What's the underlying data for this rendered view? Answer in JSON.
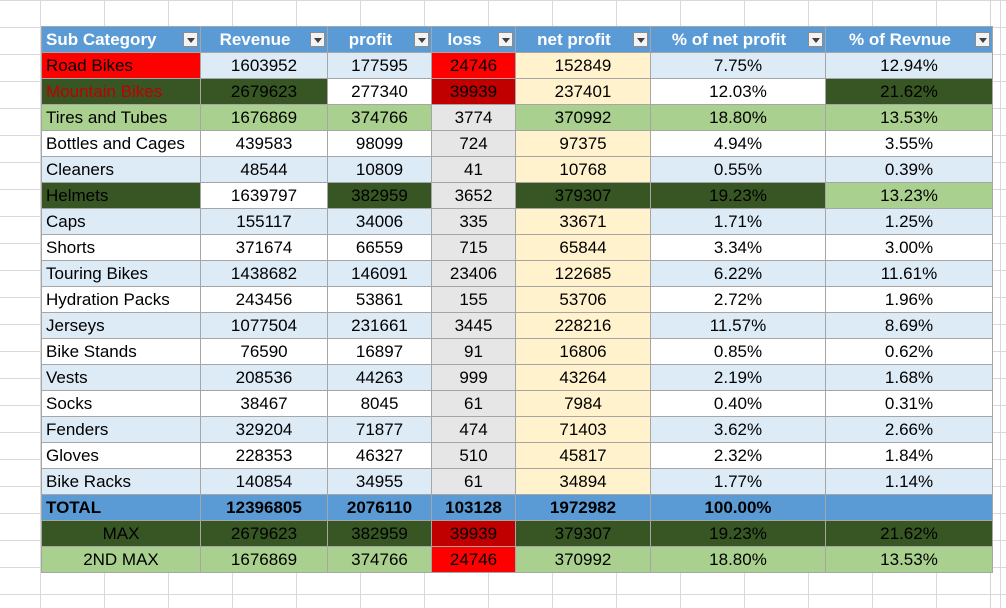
{
  "chart_data": {
    "type": "table",
    "headers": [
      "Sub Category",
      "Revenue",
      "profit",
      "loss",
      "net profit",
      "% of net profit",
      "% of Revnue"
    ],
    "rows": [
      [
        "Road Bikes",
        "1603952",
        "177595",
        "24746",
        "152849",
        "7.75%",
        "12.94%"
      ],
      [
        "Mountain Bikes",
        "2679623",
        "277340",
        "39939",
        "237401",
        "12.03%",
        "21.62%"
      ],
      [
        "Tires and Tubes",
        "1676869",
        "374766",
        "3774",
        "370992",
        "18.80%",
        "13.53%"
      ],
      [
        "Bottles and Cages",
        "439583",
        "98099",
        "724",
        "97375",
        "4.94%",
        "3.55%"
      ],
      [
        "Cleaners",
        "48544",
        "10809",
        "41",
        "10768",
        "0.55%",
        "0.39%"
      ],
      [
        "Helmets",
        "1639797",
        "382959",
        "3652",
        "379307",
        "19.23%",
        "13.23%"
      ],
      [
        "Caps",
        "155117",
        "34006",
        "335",
        "33671",
        "1.71%",
        "1.25%"
      ],
      [
        "Shorts",
        "371674",
        "66559",
        "715",
        "65844",
        "3.34%",
        "3.00%"
      ],
      [
        "Touring Bikes",
        "1438682",
        "146091",
        "23406",
        "122685",
        "6.22%",
        "11.61%"
      ],
      [
        "Hydration Packs",
        "243456",
        "53861",
        "155",
        "53706",
        "2.72%",
        "1.96%"
      ],
      [
        "Jerseys",
        "1077504",
        "231661",
        "3445",
        "228216",
        "11.57%",
        "8.69%"
      ],
      [
        "Bike Stands",
        "76590",
        "16897",
        "91",
        "16806",
        "0.85%",
        "0.62%"
      ],
      [
        "Vests",
        "208536",
        "44263",
        "999",
        "43264",
        "2.19%",
        "1.68%"
      ],
      [
        "Socks",
        "38467",
        "8045",
        "61",
        "7984",
        "0.40%",
        "0.31%"
      ],
      [
        "Fenders",
        "329204",
        "71877",
        "474",
        "71403",
        "3.62%",
        "2.66%"
      ],
      [
        "Gloves",
        "228353",
        "46327",
        "510",
        "45817",
        "2.32%",
        "1.84%"
      ],
      [
        "Bike Racks",
        "140854",
        "34955",
        "61",
        "34894",
        "1.77%",
        "1.14%"
      ]
    ],
    "total": [
      "TOTAL",
      "12396805",
      "2076110",
      "103128",
      "1972982",
      "100.00%",
      ""
    ],
    "max": [
      "MAX",
      "2679623",
      "382959",
      "39939",
      "379307",
      "19.23%",
      "21.62%"
    ],
    "second_max": [
      "2ND MAX",
      "1676869",
      "374766",
      "24746",
      "370992",
      "18.80%",
      "13.53%"
    ]
  },
  "colors": {
    "header": "#5b9bd5",
    "light_blue": "#ddebf7",
    "loss_col": "#e7e6e6",
    "net_col": "#fff2cc",
    "highlight_red": "#ff0000",
    "highlight_dark_red": "#c00000",
    "highlight_dark_green": "#375623",
    "highlight_light_green": "#a9d08e"
  },
  "highlights": {
    "0": {
      "0": "hl-red",
      "3": "hl-red"
    },
    "1": {
      "0": "hl-dark-redtext",
      "1": "hl-dark",
      "2": "hl-white",
      "3": "hl-darkred",
      "5": "hl-white",
      "6": "hl-dark"
    },
    "2": {
      "0": "hl-green",
      "1": "hl-green",
      "2": "hl-green",
      "4": "hl-green",
      "5": "hl-green",
      "6": "hl-green"
    },
    "5": {
      "0": "hl-dark",
      "1": "hl-white",
      "2": "hl-dark",
      "4": "hl-dark",
      "5": "hl-dark",
      "6": "hl-green"
    }
  }
}
